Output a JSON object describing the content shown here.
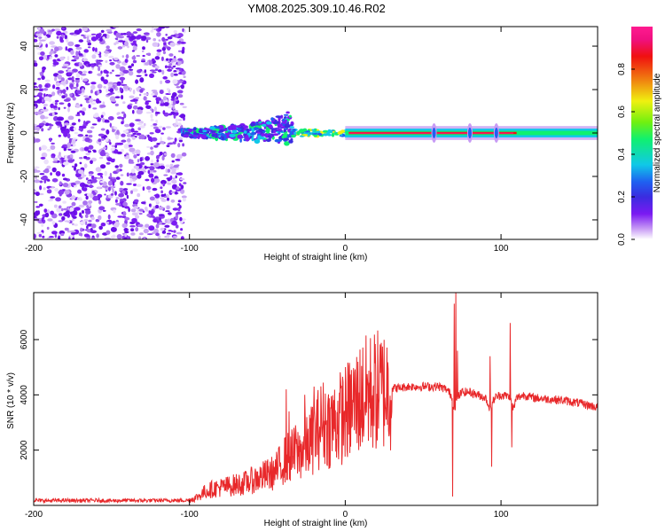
{
  "title": "YM08.2025.309.10.46.R02",
  "chart_data": [
    {
      "type": "heatmap",
      "name": "spectrogram",
      "xlabel": "Height of straight line (km)",
      "ylabel": "Frequency (Hz)",
      "xlim": [
        -200,
        162
      ],
      "ylim": [
        -49,
        49
      ],
      "xticks": [
        "-200",
        "-100",
        "0",
        "100"
      ],
      "xtick_values": [
        -200,
        -100,
        0,
        100
      ],
      "yticks": [
        "40",
        "20",
        "0",
        "-20",
        "-40"
      ],
      "ytick_values": [
        40,
        20,
        0,
        -20,
        -40
      ],
      "noise_region_x": [
        -200,
        -103
      ],
      "signal_band_hz": [
        -2,
        2
      ],
      "signal_tone_hz": 0,
      "colorbar": {
        "label": "Normalized spectral amplitude",
        "range": [
          0,
          1
        ],
        "ticks": [
          "0.0",
          "0.2",
          "0.4",
          "0.6",
          "0.8"
        ],
        "tick_values": [
          0.0,
          0.2,
          0.4,
          0.6,
          0.8
        ],
        "colormap": [
          "#ffffff",
          "#c89bf5",
          "#7a1af2",
          "#3a2ce0",
          "#1f60f0",
          "#10c8e8",
          "#10f070",
          "#70f010",
          "#f0f010",
          "#f08010",
          "#f01010",
          "#f01080",
          "#ff1a90"
        ]
      }
    },
    {
      "type": "line",
      "name": "snr",
      "xlabel": "Height of straight line (km)",
      "ylabel": "SNR (10 * v/v)",
      "xlim": [
        -200,
        162
      ],
      "ylim": [
        0,
        7700
      ],
      "xticks": [
        "-200",
        "-100",
        "0",
        "100"
      ],
      "xtick_values": [
        -200,
        -100,
        0,
        100
      ],
      "yticks": [
        "2000",
        "4000",
        "6000"
      ],
      "ytick_values": [
        2000,
        4000,
        6000
      ],
      "color": "#e8282a",
      "series": [
        {
          "name": "SNR",
          "x": [
            -200,
            -190,
            -180,
            -170,
            -160,
            -150,
            -140,
            -130,
            -120,
            -110,
            -100,
            -95,
            -90,
            -85,
            -80,
            -75,
            -70,
            -65,
            -60,
            -55,
            -50,
            -45,
            -40,
            -35,
            -30,
            -25,
            -20,
            -15,
            -10,
            -5,
            0,
            5,
            10,
            15,
            20,
            25,
            30,
            35,
            40,
            45,
            50,
            55,
            60,
            65,
            68,
            70,
            72,
            75,
            80,
            85,
            90,
            93,
            96,
            100,
            105,
            108,
            110,
            115,
            120,
            130,
            140,
            150,
            162
          ],
          "values": [
            180,
            170,
            180,
            175,
            180,
            170,
            180,
            175,
            180,
            180,
            190,
            300,
            500,
            600,
            650,
            700,
            750,
            800,
            900,
            1000,
            1100,
            1200,
            1600,
            1800,
            1900,
            2100,
            2500,
            3000,
            2900,
            3100,
            3300,
            3600,
            3900,
            4050,
            4150,
            4200,
            4250,
            4250,
            4300,
            4300,
            4300,
            4300,
            4300,
            4200,
            4000,
            3500,
            3900,
            4100,
            4100,
            4000,
            3900,
            3500,
            3900,
            4000,
            3950,
            3500,
            3900,
            4000,
            3900,
            3850,
            3800,
            3700,
            3550
          ]
        }
      ],
      "spikes": [
        {
          "x": 70,
          "value": 7300
        },
        {
          "x": 71,
          "value": 7700
        },
        {
          "x": 69,
          "value": 320
        },
        {
          "x": 72,
          "value": 5600
        },
        {
          "x": 93,
          "value": 5400
        },
        {
          "x": 94,
          "value": 1400
        },
        {
          "x": 106,
          "value": 6600
        },
        {
          "x": 107,
          "value": 2100
        },
        {
          "x": -38,
          "value": 4200
        },
        {
          "x": -26,
          "value": 4000
        },
        {
          "x": -20,
          "value": 4300
        },
        {
          "x": 8,
          "value": 4100
        },
        {
          "x": -36,
          "value": 3400
        },
        {
          "x": -32,
          "value": 2900
        }
      ]
    }
  ]
}
